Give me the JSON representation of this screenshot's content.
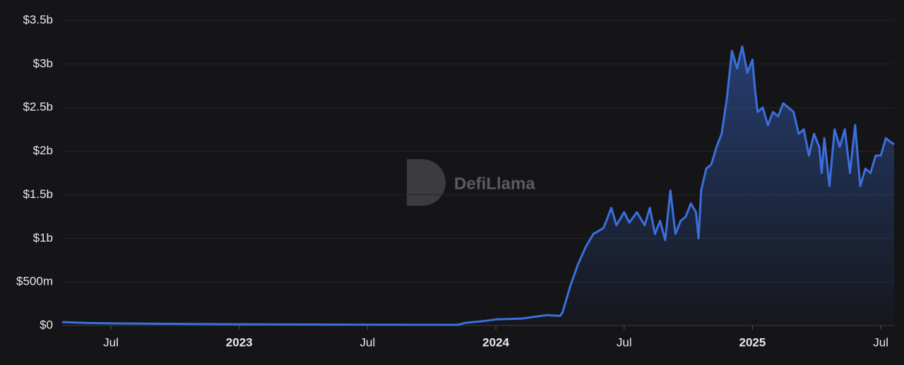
{
  "chart_data": {
    "type": "area",
    "watermark": "DefiLlama",
    "color": "#3b6fdc",
    "x": [
      2022.31,
      2022.4,
      2022.5,
      2022.7,
      2023.0,
      2023.5,
      2023.85,
      2023.88,
      2023.95,
      2024.0,
      2024.1,
      2024.15,
      2024.2,
      2024.25,
      2024.26,
      2024.29,
      2024.32,
      2024.35,
      2024.38,
      2024.42,
      2024.45,
      2024.47,
      2024.5,
      2024.52,
      2024.55,
      2024.58,
      2024.6,
      2024.62,
      2024.64,
      2024.66,
      2024.68,
      2024.7,
      2024.72,
      2024.74,
      2024.76,
      2024.78,
      2024.79,
      2024.8,
      2024.82,
      2024.84,
      2024.86,
      2024.88,
      2024.9,
      2024.92,
      2024.94,
      2024.96,
      2024.98,
      2025.0,
      2025.01,
      2025.02,
      2025.04,
      2025.06,
      2025.08,
      2025.1,
      2025.12,
      2025.14,
      2025.16,
      2025.18,
      2025.2,
      2025.22,
      2025.24,
      2025.26,
      2025.27,
      2025.28,
      2025.3,
      2025.32,
      2025.34,
      2025.36,
      2025.38,
      2025.4,
      2025.42,
      2025.44,
      2025.46,
      2025.48,
      2025.5,
      2025.52,
      2025.54,
      2025.552
    ],
    "values": [
      0.04,
      0.03,
      0.025,
      0.02,
      0.015,
      0.01,
      0.008,
      0.03,
      0.05,
      0.07,
      0.08,
      0.1,
      0.12,
      0.11,
      0.15,
      0.45,
      0.7,
      0.9,
      1.05,
      1.12,
      1.35,
      1.15,
      1.3,
      1.18,
      1.3,
      1.15,
      1.35,
      1.05,
      1.2,
      0.98,
      1.55,
      1.05,
      1.2,
      1.25,
      1.4,
      1.3,
      1.0,
      1.55,
      1.8,
      1.85,
      2.05,
      2.2,
      2.6,
      3.15,
      2.95,
      3.2,
      2.9,
      3.05,
      2.7,
      2.45,
      2.5,
      2.3,
      2.45,
      2.4,
      2.55,
      2.5,
      2.45,
      2.2,
      2.25,
      1.95,
      2.2,
      2.05,
      1.75,
      2.15,
      1.6,
      2.25,
      2.05,
      2.25,
      1.75,
      2.3,
      1.6,
      1.8,
      1.75,
      1.95,
      1.95,
      2.15,
      2.1,
      2.08
    ],
    "xlim": [
      2022.31,
      2025.552
    ],
    "ylim": [
      0,
      3.5
    ],
    "xticks": [
      {
        "value": 2022.5,
        "label": "Jul"
      },
      2023,
      {
        "value": 2023.5,
        "label": "Jul"
      },
      2024,
      {
        "value": 2024.5,
        "label": "Jul"
      },
      2025,
      {
        "value": 2025.5,
        "label": "Jul"
      }
    ],
    "yticks": [
      {
        "value": 0,
        "label": "$0"
      },
      {
        "value": 0.5,
        "label": "$500m"
      },
      {
        "value": 1,
        "label": "$1b"
      },
      {
        "value": 1.5,
        "label": "$1.5b"
      },
      {
        "value": 2,
        "label": "$2b"
      },
      {
        "value": 2.5,
        "label": "$2.5b"
      },
      {
        "value": 3,
        "label": "$3b"
      },
      {
        "value": 3.5,
        "label": "$3.5b"
      }
    ],
    "grid": true
  }
}
